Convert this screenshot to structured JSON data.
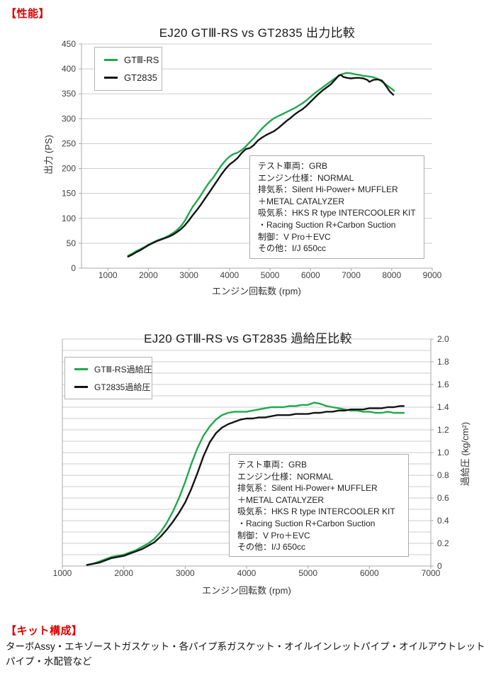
{
  "page": {
    "performance_label": "【性能】",
    "kit_label": "【キット構成】",
    "kit_description": "ターボAssy・エキゾーストガスケット・各パイプ系ガスケット・オイルインレットパイプ・オイルアウトレットパイプ・水配管など"
  },
  "test_conditions": {
    "lines": [
      "テスト車両：GRB",
      "エンジン仕様：NORMAL",
      "排気系：Silent Hi-Power+ MUFFLER",
      "＋METAL CATALYZER",
      "吸気系：HKS R type INTERCOOLER KIT",
      "・Racing Suction R+Carbon Suction",
      "制御：V Pro＋EVC",
      "その他：I/J 650cc"
    ]
  },
  "colors": {
    "accent_red": "#dd0000",
    "gt3rs_green": "#1fa84c",
    "gt2835_black": "#141414",
    "gridline": "#cdcdcd",
    "axis": "#a8a8a8",
    "tick_text": "#404040"
  },
  "chart_data": [
    {
      "type": "line",
      "title": "EJ20 GTⅢ-RS vs GT2835 出力比較",
      "xlabel": "エンジン回転数 (rpm)",
      "ylabel": "出力 (PS)",
      "xlim": [
        350,
        9000
      ],
      "ylim": [
        0,
        450
      ],
      "x_ticks": [
        1000,
        2000,
        3000,
        4000,
        5000,
        6000,
        7000,
        8000,
        9000
      ],
      "x_tick_labels": [
        "1000",
        "2000",
        "3000",
        "4000",
        "5000",
        "6000",
        "7000",
        "8000",
        "9000"
      ],
      "y_ticks": [
        0,
        50,
        100,
        150,
        200,
        250,
        300,
        350,
        400,
        450
      ],
      "y_tick_labels": [
        "0",
        "50",
        "100",
        "150",
        "200",
        "250",
        "300",
        "350",
        "400",
        "450"
      ],
      "y_grid_step": 50,
      "y_axis_side": "left",
      "grid": "horizontal",
      "legend_position": "top-left-inside",
      "series": [
        {
          "name": "GTⅢ-RS",
          "color": "#1fa84c",
          "points": [
            [
              1500,
              25
            ],
            [
              1600,
              29
            ],
            [
              1700,
              34
            ],
            [
              1800,
              38
            ],
            [
              1900,
              42
            ],
            [
              2000,
              47
            ],
            [
              2100,
              51
            ],
            [
              2200,
              55
            ],
            [
              2300,
              58
            ],
            [
              2400,
              61
            ],
            [
              2500,
              65
            ],
            [
              2600,
              70
            ],
            [
              2700,
              76
            ],
            [
              2800,
              84
            ],
            [
              2900,
              95
            ],
            [
              3000,
              110
            ],
            [
              3100,
              124
            ],
            [
              3200,
              135
            ],
            [
              3300,
              147
            ],
            [
              3400,
              160
            ],
            [
              3500,
              172
            ],
            [
              3600,
              182
            ],
            [
              3700,
              194
            ],
            [
              3800,
              206
            ],
            [
              3900,
              216
            ],
            [
              4000,
              224
            ],
            [
              4100,
              229
            ],
            [
              4200,
              232
            ],
            [
              4300,
              237
            ],
            [
              4400,
              244
            ],
            [
              4500,
              253
            ],
            [
              4600,
              261
            ],
            [
              4700,
              271
            ],
            [
              4800,
              280
            ],
            [
              4900,
              288
            ],
            [
              5000,
              295
            ],
            [
              5100,
              301
            ],
            [
              5200,
              305
            ],
            [
              5300,
              309
            ],
            [
              5400,
              313
            ],
            [
              5500,
              317
            ],
            [
              5600,
              321
            ],
            [
              5700,
              326
            ],
            [
              5800,
              331
            ],
            [
              5900,
              337
            ],
            [
              6000,
              344
            ],
            [
              6100,
              351
            ],
            [
              6200,
              357
            ],
            [
              6300,
              363
            ],
            [
              6400,
              369
            ],
            [
              6500,
              375
            ],
            [
              6600,
              381
            ],
            [
              6700,
              386
            ],
            [
              6800,
              390
            ],
            [
              6900,
              392
            ],
            [
              7000,
              391
            ],
            [
              7100,
              389
            ],
            [
              7200,
              388
            ],
            [
              7300,
              386
            ],
            [
              7400,
              385
            ],
            [
              7500,
              384
            ],
            [
              7600,
              382
            ],
            [
              7700,
              378
            ],
            [
              7800,
              372
            ],
            [
              7900,
              366
            ],
            [
              8000,
              360
            ],
            [
              8060,
              356
            ]
          ]
        },
        {
          "name": "GT2835",
          "color": "#141414",
          "points": [
            [
              1500,
              23
            ],
            [
              1600,
              27
            ],
            [
              1700,
              32
            ],
            [
              1800,
              36
            ],
            [
              1900,
              41
            ],
            [
              2000,
              46
            ],
            [
              2100,
              50
            ],
            [
              2200,
              54
            ],
            [
              2300,
              57
            ],
            [
              2400,
              60
            ],
            [
              2500,
              63
            ],
            [
              2600,
              67
            ],
            [
              2700,
              72
            ],
            [
              2800,
              78
            ],
            [
              2900,
              86
            ],
            [
              3000,
              96
            ],
            [
              3100,
              107
            ],
            [
              3200,
              117
            ],
            [
              3300,
              128
            ],
            [
              3400,
              140
            ],
            [
              3500,
              152
            ],
            [
              3600,
              164
            ],
            [
              3700,
              176
            ],
            [
              3800,
              188
            ],
            [
              3900,
              199
            ],
            [
              4000,
              208
            ],
            [
              4100,
              214
            ],
            [
              4200,
              221
            ],
            [
              4300,
              231
            ],
            [
              4400,
              239
            ],
            [
              4500,
              241
            ],
            [
              4600,
              247
            ],
            [
              4700,
              256
            ],
            [
              4800,
              262
            ],
            [
              4900,
              267
            ],
            [
              5000,
              271
            ],
            [
              5100,
              275
            ],
            [
              5200,
              281
            ],
            [
              5300,
              288
            ],
            [
              5400,
              295
            ],
            [
              5500,
              301
            ],
            [
              5600,
              308
            ],
            [
              5700,
              314
            ],
            [
              5800,
              319
            ],
            [
              5900,
              326
            ],
            [
              6000,
              334
            ],
            [
              6100,
              342
            ],
            [
              6200,
              350
            ],
            [
              6300,
              357
            ],
            [
              6400,
              363
            ],
            [
              6500,
              369
            ],
            [
              6600,
              378
            ],
            [
              6700,
              387
            ],
            [
              6750,
              388
            ],
            [
              6800,
              384
            ],
            [
              6900,
              382
            ],
            [
              7000,
              381
            ],
            [
              7100,
              382
            ],
            [
              7200,
              382
            ],
            [
              7300,
              381
            ],
            [
              7400,
              378
            ],
            [
              7450,
              374
            ],
            [
              7550,
              378
            ],
            [
              7650,
              379
            ],
            [
              7750,
              377
            ],
            [
              7800,
              373
            ],
            [
              7850,
              367
            ],
            [
              7900,
              361
            ],
            [
              7950,
              355
            ],
            [
              8000,
              351
            ],
            [
              8040,
              348
            ]
          ]
        }
      ]
    },
    {
      "type": "line",
      "title": "EJ20 GTⅢ-RS vs GT2835 過給圧比較",
      "xlabel": "エンジン回転数 (rpm)",
      "ylabel": "過給圧 (kg/cm²)",
      "xlim": [
        1000,
        7000
      ],
      "ylim": [
        0,
        2.0
      ],
      "x_ticks": [
        1000,
        2000,
        3000,
        4000,
        5000,
        6000,
        7000
      ],
      "x_tick_labels": [
        "1000",
        "2000",
        "3000",
        "4000",
        "5000",
        "6000",
        "7000"
      ],
      "y_ticks": [
        0,
        0.2,
        0.4,
        0.6,
        0.8,
        1.0,
        1.2,
        1.4,
        1.6,
        1.8,
        2.0
      ],
      "y_tick_labels": [
        "0",
        "0.2",
        "0.4",
        "0.6",
        "0.8",
        "1.0",
        "1.2",
        "1.4",
        "1.6",
        "1.8",
        "2.0"
      ],
      "y_grid_step": 0.1,
      "y_axis_side": "right",
      "grid": "horizontal",
      "legend_position": "top-left-inside",
      "series": [
        {
          "name": "GTⅢ-RS過給圧",
          "color": "#1fa84c",
          "points": [
            [
              1400,
              0.01
            ],
            [
              1500,
              0.02
            ],
            [
              1600,
              0.04
            ],
            [
              1700,
              0.06
            ],
            [
              1800,
              0.08
            ],
            [
              1900,
              0.09
            ],
            [
              2000,
              0.1
            ],
            [
              2100,
              0.12
            ],
            [
              2200,
              0.14
            ],
            [
              2300,
              0.17
            ],
            [
              2400,
              0.2
            ],
            [
              2500,
              0.24
            ],
            [
              2600,
              0.3
            ],
            [
              2700,
              0.38
            ],
            [
              2800,
              0.48
            ],
            [
              2900,
              0.6
            ],
            [
              3000,
              0.74
            ],
            [
              3100,
              0.9
            ],
            [
              3200,
              1.04
            ],
            [
              3300,
              1.15
            ],
            [
              3400,
              1.23
            ],
            [
              3500,
              1.29
            ],
            [
              3600,
              1.33
            ],
            [
              3700,
              1.35
            ],
            [
              3800,
              1.36
            ],
            [
              3900,
              1.36
            ],
            [
              4000,
              1.36
            ],
            [
              4100,
              1.37
            ],
            [
              4200,
              1.38
            ],
            [
              4300,
              1.39
            ],
            [
              4400,
              1.4
            ],
            [
              4500,
              1.4
            ],
            [
              4600,
              1.4
            ],
            [
              4700,
              1.41
            ],
            [
              4800,
              1.41
            ],
            [
              4900,
              1.42
            ],
            [
              5000,
              1.42
            ],
            [
              5100,
              1.44
            ],
            [
              5200,
              1.43
            ],
            [
              5300,
              1.41
            ],
            [
              5400,
              1.4
            ],
            [
              5500,
              1.39
            ],
            [
              5600,
              1.38
            ],
            [
              5700,
              1.37
            ],
            [
              5800,
              1.37
            ],
            [
              5900,
              1.36
            ],
            [
              6000,
              1.36
            ],
            [
              6100,
              1.35
            ],
            [
              6200,
              1.35
            ],
            [
              6300,
              1.36
            ],
            [
              6400,
              1.35
            ],
            [
              6500,
              1.35
            ],
            [
              6560,
              1.35
            ]
          ]
        },
        {
          "name": "GT2835過給圧",
          "color": "#141414",
          "points": [
            [
              1400,
              0.01
            ],
            [
              1500,
              0.02
            ],
            [
              1600,
              0.03
            ],
            [
              1700,
              0.05
            ],
            [
              1800,
              0.07
            ],
            [
              1900,
              0.08
            ],
            [
              2000,
              0.09
            ],
            [
              2100,
              0.11
            ],
            [
              2200,
              0.13
            ],
            [
              2300,
              0.15
            ],
            [
              2400,
              0.18
            ],
            [
              2500,
              0.21
            ],
            [
              2600,
              0.26
            ],
            [
              2700,
              0.32
            ],
            [
              2800,
              0.39
            ],
            [
              2900,
              0.47
            ],
            [
              3000,
              0.56
            ],
            [
              3100,
              0.68
            ],
            [
              3200,
              0.82
            ],
            [
              3300,
              0.97
            ],
            [
              3400,
              1.09
            ],
            [
              3500,
              1.17
            ],
            [
              3600,
              1.22
            ],
            [
              3700,
              1.25
            ],
            [
              3800,
              1.27
            ],
            [
              3900,
              1.29
            ],
            [
              4000,
              1.3
            ],
            [
              4100,
              1.3
            ],
            [
              4200,
              1.31
            ],
            [
              4300,
              1.31
            ],
            [
              4400,
              1.32
            ],
            [
              4500,
              1.33
            ],
            [
              4600,
              1.33
            ],
            [
              4700,
              1.33
            ],
            [
              4800,
              1.34
            ],
            [
              4900,
              1.34
            ],
            [
              5000,
              1.34
            ],
            [
              5100,
              1.35
            ],
            [
              5200,
              1.35
            ],
            [
              5300,
              1.36
            ],
            [
              5400,
              1.36
            ],
            [
              5500,
              1.37
            ],
            [
              5600,
              1.37
            ],
            [
              5700,
              1.38
            ],
            [
              5800,
              1.38
            ],
            [
              5900,
              1.38
            ],
            [
              6000,
              1.39
            ],
            [
              6100,
              1.39
            ],
            [
              6200,
              1.39
            ],
            [
              6300,
              1.4
            ],
            [
              6400,
              1.4
            ],
            [
              6500,
              1.41
            ],
            [
              6560,
              1.41
            ]
          ]
        }
      ]
    }
  ]
}
